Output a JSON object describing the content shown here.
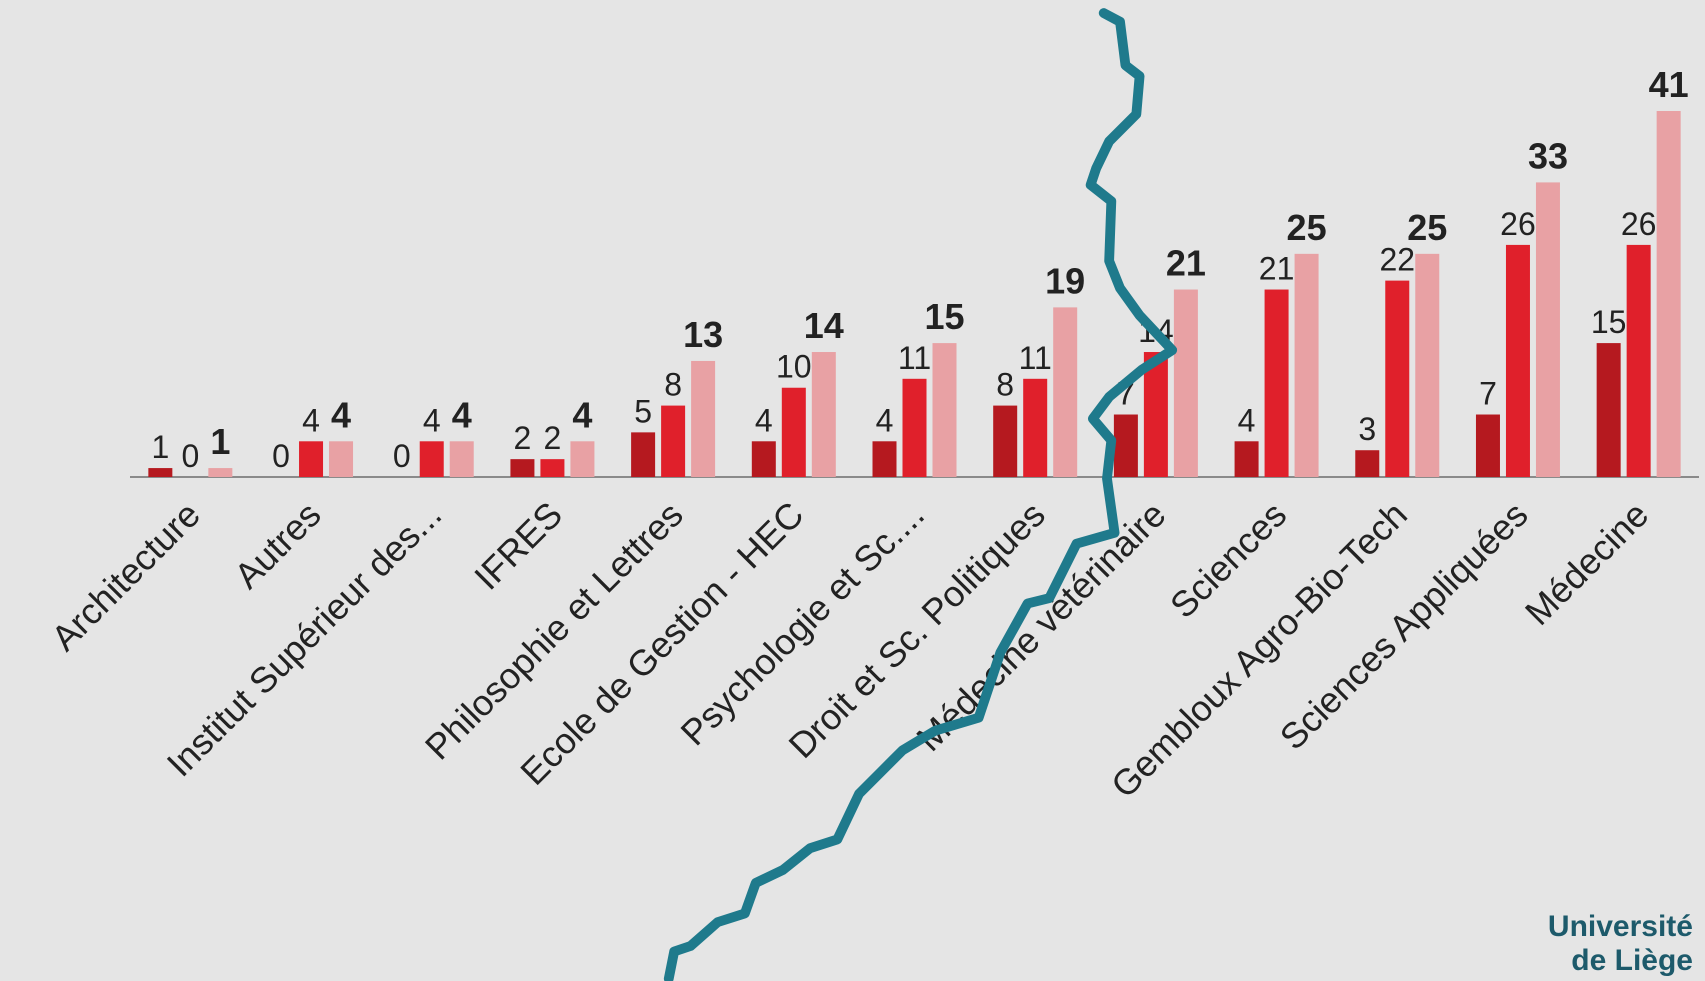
{
  "chart_data": {
    "type": "bar",
    "categories": [
      "Architecture",
      "Autres",
      "Institut Supérieur des...",
      "IFRES",
      "Philosophie et Lettres",
      "Ecole de Gestion - HEC",
      "Psychologie et Sc....",
      "Droit et Sc. Politiques",
      "Médecine vétérinaire",
      "Sciences",
      "Gembloux Agro-Bio-Tech",
      "Sciences Appliquées",
      "Médecine"
    ],
    "series": [
      {
        "color": "#b5191f",
        "values": [
          1,
          0,
          0,
          2,
          5,
          4,
          4,
          8,
          7,
          4,
          3,
          7,
          15
        ]
      },
      {
        "color": "#e0202b",
        "values": [
          0,
          4,
          4,
          2,
          8,
          10,
          11,
          11,
          14,
          21,
          22,
          26,
          26
        ]
      },
      {
        "color": "#e8a1a4",
        "values": [
          1,
          4,
          4,
          4,
          13,
          14,
          15,
          19,
          21,
          25,
          25,
          33,
          41
        ]
      }
    ],
    "ylim": [
      0,
      41
    ]
  },
  "logo": {
    "lines": [
      "Université",
      "de Liège"
    ]
  }
}
